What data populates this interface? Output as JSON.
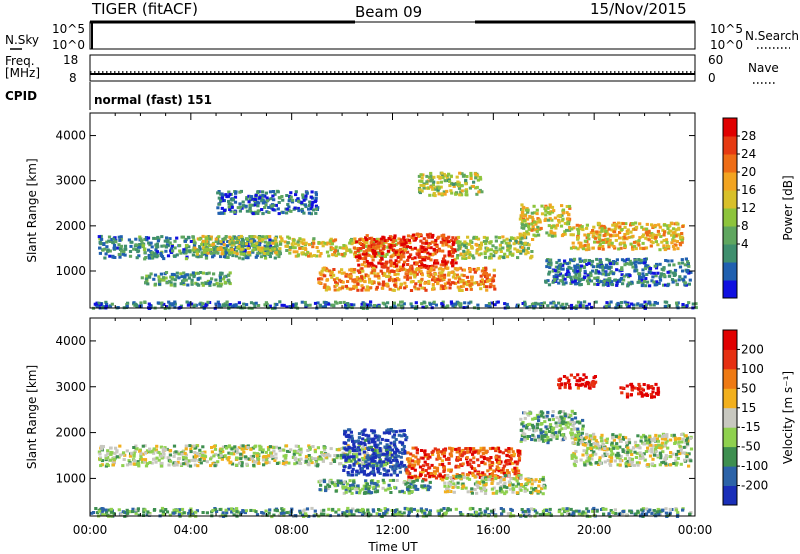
{
  "header": {
    "radar": "TIGER (fitACF)",
    "beam": "Beam 09",
    "date": "15/Nov/2015"
  },
  "strips": {
    "nsky_label": "N.Sky",
    "nsearch_label": "N.Search",
    "nsky_ticks": [
      "10^5",
      "10^0"
    ],
    "nsearch_ticks": [
      "10^5",
      "10^0"
    ],
    "freq_label_line1": "Freq.",
    "freq_label_line2": "[MHz]",
    "freq_ticks": [
      "18",
      "8"
    ],
    "nave_label": "Nave",
    "nave_ticks": [
      "60",
      "0"
    ],
    "cpid_label": "CPID",
    "cpid_text": "normal (fast) 151"
  },
  "chart_data": [
    {
      "type": "heatmap",
      "name": "power",
      "ylabel": "Slant Range [km]",
      "xlabel": "",
      "y_ticks": [
        "4000",
        "3000",
        "2000",
        "1000"
      ],
      "ylim": [
        180,
        4500
      ],
      "colorbar": {
        "label": "Power [dB]",
        "ticks": [
          "28",
          "24",
          "20",
          "16",
          "12",
          "8",
          "4"
        ],
        "colors": [
          "#1010e0",
          "#2060b0",
          "#3f8f6e",
          "#5fa65f",
          "#8dc43c",
          "#d8c02a",
          "#f2a421",
          "#ee6d16",
          "#e63a12",
          "#e00000"
        ]
      },
      "regions": [
        {
          "t0": 0.3,
          "t1": 7.5,
          "r0": 1300,
          "r1": 1800,
          "level": 0.25
        },
        {
          "t0": 4.0,
          "t1": 8.0,
          "r0": 1400,
          "r1": 1800,
          "level": 0.5
        },
        {
          "t0": 8.0,
          "t1": 12.5,
          "r0": 1350,
          "r1": 1750,
          "level": 0.55
        },
        {
          "t0": 10.5,
          "t1": 14.5,
          "r0": 1100,
          "r1": 1850,
          "level": 0.85
        },
        {
          "t0": 9.0,
          "t1": 16.0,
          "r0": 600,
          "r1": 1100,
          "level": 0.7
        },
        {
          "t0": 14.5,
          "t1": 17.5,
          "r0": 1300,
          "r1": 1800,
          "level": 0.45
        },
        {
          "t0": 17.0,
          "t1": 19.0,
          "r0": 1800,
          "r1": 2500,
          "level": 0.55
        },
        {
          "t0": 19.0,
          "t1": 23.5,
          "r0": 1500,
          "r1": 2100,
          "level": 0.6
        },
        {
          "t0": 18.0,
          "t1": 23.8,
          "r0": 700,
          "r1": 1300,
          "level": 0.2
        },
        {
          "t0": 2.0,
          "t1": 5.5,
          "r0": 700,
          "r1": 1000,
          "level": 0.3
        },
        {
          "t0": 5.0,
          "t1": 9.0,
          "r0": 2300,
          "r1": 2800,
          "level": 0.2
        },
        {
          "t0": 0.0,
          "t1": 24.0,
          "r0": 200,
          "r1": 350,
          "level": 0.2
        },
        {
          "t0": 13.0,
          "t1": 15.5,
          "r0": 2700,
          "r1": 3200,
          "level": 0.45
        }
      ]
    },
    {
      "type": "heatmap",
      "name": "velocity",
      "ylabel": "Slant Range [km]",
      "xlabel": "Time UT",
      "y_ticks": [
        "4000",
        "3000",
        "2000",
        "1000"
      ],
      "x_ticks": [
        "00:00",
        "04:00",
        "08:00",
        "12:00",
        "16:00",
        "20:00",
        "00:00"
      ],
      "ylim": [
        180,
        4500
      ],
      "colorbar": {
        "label": "Velocity [m s⁻¹]",
        "ticks": [
          "200",
          "100",
          "50",
          "15",
          "-15",
          "-50",
          "-100",
          "-200"
        ],
        "colors": [
          "#1a2fb8",
          "#2c63a8",
          "#3e8f50",
          "#8fd14f",
          "#c8c8c0",
          "#f2b01e",
          "#ee7a14",
          "#e63012",
          "#e00000"
        ]
      },
      "regions": [
        {
          "t0": 0.3,
          "t1": 12.0,
          "r0": 1300,
          "r1": 1750,
          "level": 0.45
        },
        {
          "t0": 10.0,
          "t1": 12.5,
          "r0": 1100,
          "r1": 2100,
          "level": 0.05
        },
        {
          "t0": 12.5,
          "t1": 17.0,
          "r0": 1000,
          "r1": 1700,
          "level": 0.8
        },
        {
          "t0": 9.0,
          "t1": 13.5,
          "r0": 700,
          "r1": 1000,
          "level": 0.3
        },
        {
          "t0": 17.0,
          "t1": 19.5,
          "r0": 1800,
          "r1": 2500,
          "level": 0.35
        },
        {
          "t0": 19.0,
          "t1": 23.8,
          "r0": 1300,
          "r1": 2000,
          "level": 0.45
        },
        {
          "t0": 0.0,
          "t1": 24.0,
          "r0": 200,
          "r1": 380,
          "level": 0.3
        },
        {
          "t0": 18.5,
          "t1": 20.0,
          "r0": 3000,
          "r1": 3300,
          "level": 0.95
        },
        {
          "t0": 21.0,
          "t1": 22.5,
          "r0": 2800,
          "r1": 3100,
          "level": 0.95
        },
        {
          "t0": 14.0,
          "t1": 18.0,
          "r0": 700,
          "r1": 1100,
          "level": 0.45
        }
      ]
    }
  ]
}
